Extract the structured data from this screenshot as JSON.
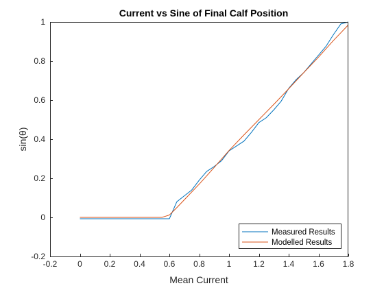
{
  "chart_data": {
    "type": "line",
    "title": "Current vs Sine of Final Calf Position",
    "xlabel": "Mean Current",
    "ylabel": "sin(θ)",
    "xlim": [
      -0.2,
      1.8
    ],
    "ylim": [
      -0.2,
      1.0
    ],
    "xticks": [
      -0.2,
      0,
      0.2,
      0.4,
      0.6,
      0.8,
      1,
      1.2,
      1.4,
      1.6,
      1.8
    ],
    "xtick_labels": [
      "-0.2",
      "0",
      "0.2",
      "0.4",
      "0.6",
      "0.8",
      "1",
      "1.2",
      "1.4",
      "1.6",
      "1.8"
    ],
    "yticks": [
      -0.2,
      0,
      0.2,
      0.4,
      0.6,
      0.8,
      1
    ],
    "ytick_labels": [
      "-0.2",
      "0",
      "0.2",
      "0.4",
      "0.6",
      "0.8",
      "1"
    ],
    "grid": false,
    "legend_position": "bottom-right",
    "series": [
      {
        "name": "Measured Results",
        "color": "#0072BD",
        "x": [
          0,
          0.6,
          0.65,
          0.7,
          0.75,
          0.8,
          0.85,
          0.9,
          0.95,
          1.0,
          1.05,
          1.1,
          1.15,
          1.2,
          1.25,
          1.3,
          1.35,
          1.4,
          1.45,
          1.5,
          1.55,
          1.6,
          1.65,
          1.7,
          1.75,
          1.8
        ],
        "y": [
          -0.007,
          -0.007,
          0.08,
          0.11,
          0.14,
          0.19,
          0.235,
          0.26,
          0.29,
          0.34,
          0.365,
          0.39,
          0.435,
          0.485,
          0.51,
          0.55,
          0.595,
          0.66,
          0.705,
          0.74,
          0.785,
          0.83,
          0.875,
          0.935,
          0.99,
          1.0
        ]
      },
      {
        "name": "Modelled Results",
        "color": "#D95319",
        "x": [
          0,
          0.55,
          0.6,
          0.65,
          0.7,
          0.8,
          0.9,
          1.0,
          1.1,
          1.2,
          1.3,
          1.4,
          1.5,
          1.6,
          1.7,
          1.8
        ],
        "y": [
          0.0,
          0.0,
          0.012,
          0.05,
          0.09,
          0.17,
          0.255,
          0.342,
          0.422,
          0.5,
          0.578,
          0.658,
          0.74,
          0.82,
          0.905,
          0.985
        ]
      }
    ]
  }
}
